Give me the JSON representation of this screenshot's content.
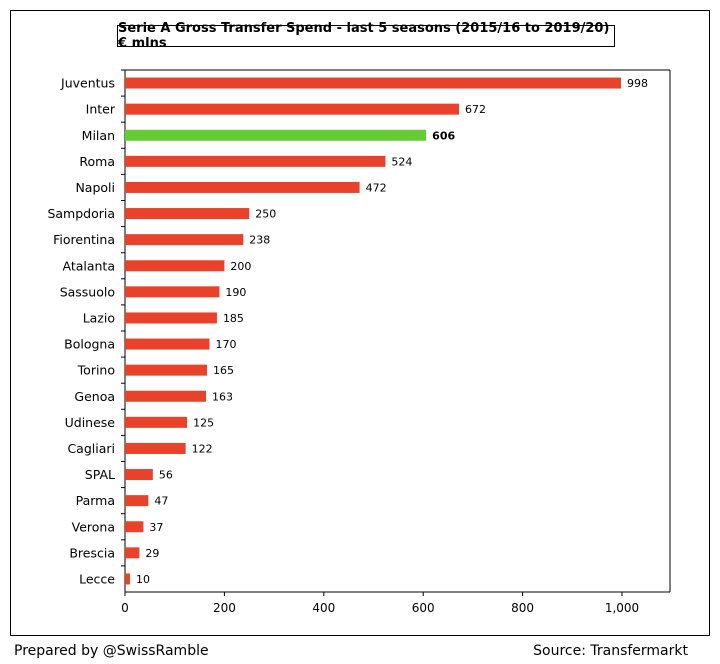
{
  "chart_data": {
    "type": "bar",
    "orientation": "horizontal",
    "title": "Serie A Gross Transfer Spend - last 5 seasons (2015/16 to 2019/20) € mlns",
    "categories": [
      "Juventus",
      "Inter",
      "Milan",
      "Roma",
      "Napoli",
      "Sampdoria",
      "Fiorentina",
      "Atalanta",
      "Sassuolo",
      "Lazio",
      "Bologna",
      "Torino",
      "Genoa",
      "Udinese",
      "Cagliari",
      "SPAL",
      "Parma",
      "Verona",
      "Brescia",
      "Lecce"
    ],
    "values": [
      998,
      672,
      606,
      524,
      472,
      250,
      238,
      200,
      190,
      185,
      170,
      165,
      163,
      125,
      122,
      56,
      47,
      37,
      29,
      10
    ],
    "highlight": "Milan",
    "colors": {
      "bar": "#e8422a",
      "highlight": "#66cc33",
      "axis": "#000000"
    },
    "xlim": [
      0,
      1100
    ],
    "xticks": [
      0,
      200,
      400,
      600,
      800,
      1000
    ],
    "xtick_labels": [
      "0",
      "200",
      "400",
      "600",
      "800",
      "1,000"
    ],
    "grid": false
  },
  "footer": {
    "prepared_by": "Prepared by @SwissRamble",
    "source": "Source: Transfermarkt"
  }
}
